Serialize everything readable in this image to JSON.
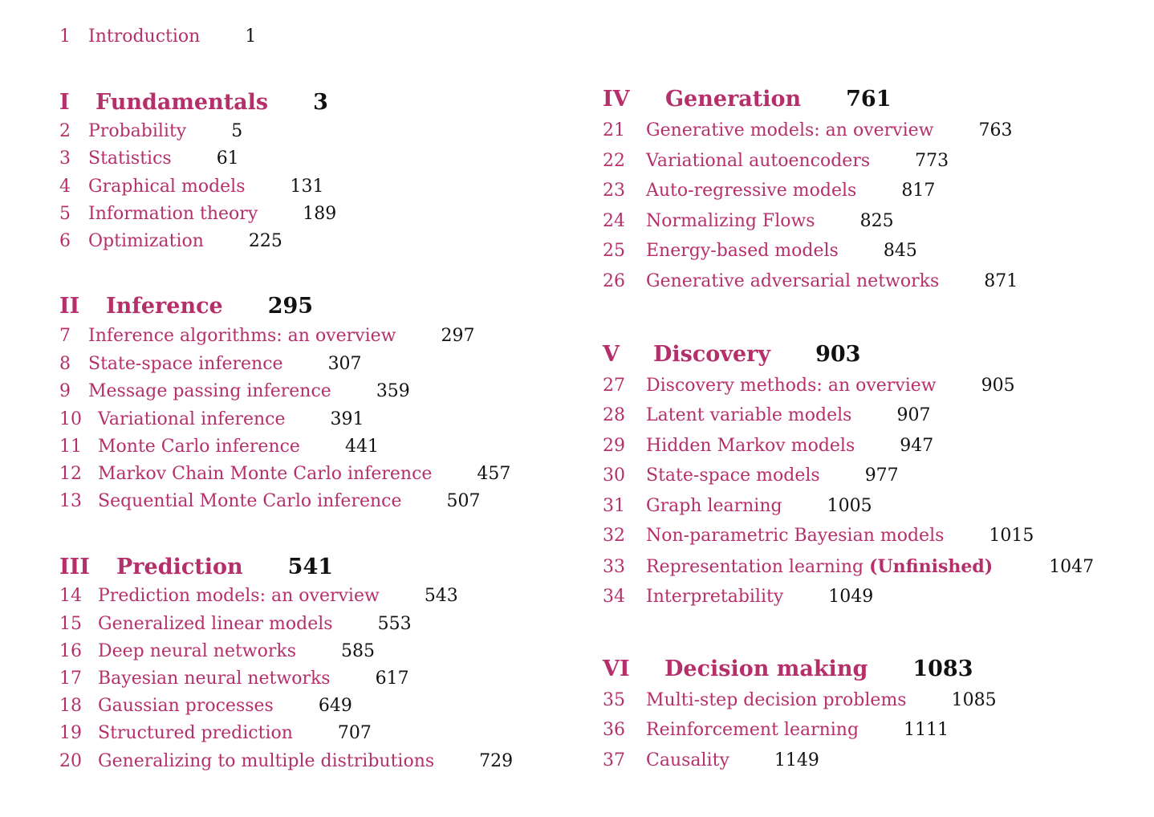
{
  "intro": {
    "num": "1",
    "title": "Introduction",
    "page": "1"
  },
  "parts": [
    {
      "num": "I",
      "title": "Fundamentals",
      "page": "3",
      "chapters": [
        {
          "num": "2",
          "title": "Probability",
          "page": "5"
        },
        {
          "num": "3",
          "title": "Statistics",
          "page": "61"
        },
        {
          "num": "4",
          "title": "Graphical models",
          "page": "131"
        },
        {
          "num": "5",
          "title": "Information theory",
          "page": "189"
        },
        {
          "num": "6",
          "title": "Optimization",
          "page": "225"
        }
      ]
    },
    {
      "num": "II",
      "title": "Inference",
      "page": "295",
      "chapters": [
        {
          "num": "7",
          "title": "Inference algorithms: an overview",
          "page": "297"
        },
        {
          "num": "8",
          "title": "State-space inference",
          "page": "307"
        },
        {
          "num": "9",
          "title": "Message passing inference",
          "page": "359"
        },
        {
          "num": "10",
          "title": "Variational inference",
          "page": "391"
        },
        {
          "num": "11",
          "title": "Monte Carlo inference",
          "page": "441"
        },
        {
          "num": "12",
          "title": "Markov Chain Monte Carlo inference",
          "page": "457"
        },
        {
          "num": "13",
          "title": "Sequential Monte Carlo inference",
          "page": "507"
        }
      ]
    },
    {
      "num": "III",
      "title": "Prediction",
      "page": "541",
      "chapters": [
        {
          "num": "14",
          "title": "Prediction models: an overview",
          "page": "543"
        },
        {
          "num": "15",
          "title": "Generalized linear models",
          "page": "553"
        },
        {
          "num": "16",
          "title": "Deep neural networks",
          "page": "585"
        },
        {
          "num": "17",
          "title": "Bayesian neural networks",
          "page": "617"
        },
        {
          "num": "18",
          "title": "Gaussian processes",
          "page": "649"
        },
        {
          "num": "19",
          "title": "Structured prediction",
          "page": "707"
        },
        {
          "num": "20",
          "title": "Generalizing to multiple distributions",
          "page": "729"
        }
      ]
    },
    {
      "num": "IV",
      "title": "Generation",
      "page": "761",
      "chapters": [
        {
          "num": "21",
          "title": "Generative models: an overview",
          "page": "763"
        },
        {
          "num": "22",
          "title": "Variational autoencoders",
          "page": "773"
        },
        {
          "num": "23",
          "title": "Auto-regressive models",
          "page": "817"
        },
        {
          "num": "24",
          "title": "Normalizing Flows",
          "page": "825"
        },
        {
          "num": "25",
          "title": "Energy-based models",
          "page": "845"
        },
        {
          "num": "26",
          "title": "Generative adversarial networks",
          "page": "871"
        }
      ]
    },
    {
      "num": "V",
      "title": "Discovery",
      "page": "903",
      "chapters": [
        {
          "num": "27",
          "title": "Discovery methods: an overview",
          "page": "905"
        },
        {
          "num": "28",
          "title": "Latent variable models",
          "page": "907"
        },
        {
          "num": "29",
          "title": "Hidden Markov models",
          "page": "947"
        },
        {
          "num": "30",
          "title": "State-space models",
          "page": "977"
        },
        {
          "num": "31",
          "title": "Graph learning",
          "page": "1005"
        },
        {
          "num": "32",
          "title": "Non-parametric Bayesian models",
          "page": "1015"
        },
        {
          "num": "33",
          "title": "Representation learning",
          "title_suffix": "(Unfinished)",
          "page": "1047"
        },
        {
          "num": "34",
          "title": "Interpretability",
          "page": "1049"
        }
      ]
    },
    {
      "num": "VI",
      "title": "Decision making",
      "page": "1083",
      "chapters": [
        {
          "num": "35",
          "title": "Multi-step decision problems",
          "page": "1085"
        },
        {
          "num": "36",
          "title": "Reinforcement learning",
          "page": "1111"
        },
        {
          "num": "37",
          "title": "Causality",
          "page": "1149"
        }
      ]
    }
  ]
}
